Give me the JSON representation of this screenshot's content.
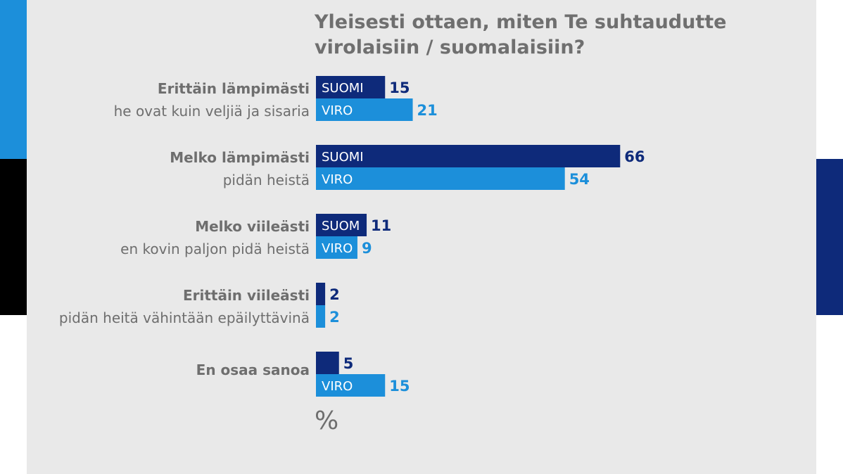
{
  "colors": {
    "suomi": "#0e2a7a",
    "viro": "#1c8fda",
    "stripe_blue": "#1c8fda",
    "stripe_black": "#000000",
    "stripe_white": "#ffffff",
    "panel_bg": "#e9e9e9",
    "text_gray": "#6e6e6e"
  },
  "chart_data": {
    "type": "bar",
    "orientation": "horizontal",
    "title": "Yleisesti ottaen, miten Te suhtaudutte virolaisiin / suomalaisiin?",
    "unit": "%",
    "categories": [
      {
        "label": "Erittäin lämpimästi",
        "sublabel": "he ovat kuin veljiä ja sisaria"
      },
      {
        "label": "Melko lämpimästi",
        "sublabel": "pidän heistä"
      },
      {
        "label": "Melko viileästi",
        "sublabel": "en kovin paljon pidä heistä"
      },
      {
        "label": "Erittäin viileästi",
        "sublabel": "pidän heitä vähintään epäilyttävinä"
      },
      {
        "label": "En osaa sanoa",
        "sublabel": ""
      }
    ],
    "series": [
      {
        "name": "SUOMI",
        "color": "#0e2a7a",
        "values": [
          15,
          66,
          11,
          2,
          5
        ],
        "inner_labels": [
          "SUOMI",
          "SUOMI",
          "SUOM",
          "",
          ""
        ]
      },
      {
        "name": "VIRO",
        "color": "#1c8fda",
        "values": [
          21,
          54,
          9,
          2,
          15
        ],
        "inner_labels": [
          "VIRO",
          "VIRO",
          "VIRO",
          "",
          "VIRO"
        ]
      }
    ],
    "xlim": [
      0,
      100
    ],
    "grid": false,
    "legend": "none"
  }
}
